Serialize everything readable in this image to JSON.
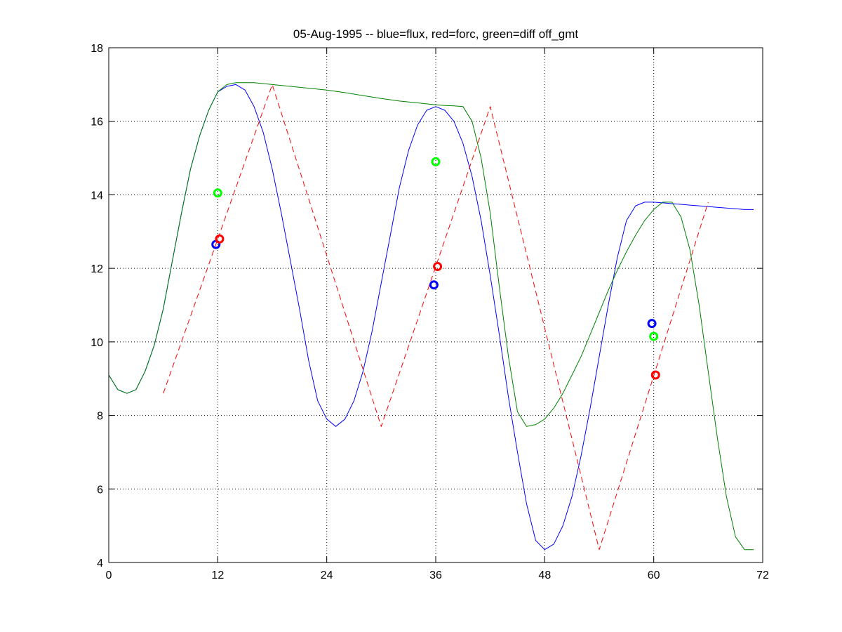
{
  "chart_data": {
    "type": "line",
    "title": "05-Aug-1995 -- blue=flux, red=forc, green=diff off_gmt",
    "xlabel": "",
    "ylabel": "",
    "xlim": [
      0,
      72
    ],
    "ylim": [
      4,
      18
    ],
    "xticks": [
      0,
      12,
      24,
      36,
      48,
      60,
      72
    ],
    "xtick_labels": [
      "0",
      "12",
      "24",
      "36",
      "48",
      "60",
      "72"
    ],
    "yticks": [
      4,
      6,
      8,
      10,
      12,
      14,
      16,
      18
    ],
    "ytick_labels": [
      "4",
      "6",
      "8",
      "10",
      "12",
      "14",
      "16",
      "18"
    ],
    "grid": true,
    "series": [
      {
        "color": "#0000ff",
        "style": "solid",
        "x": [
          0,
          1,
          2,
          3,
          4,
          5,
          6,
          7,
          8,
          9,
          10,
          11,
          12,
          13,
          14,
          15,
          16,
          17,
          18,
          19,
          20,
          21,
          22,
          23,
          24,
          25,
          26,
          27,
          28,
          29,
          30,
          31,
          32,
          33,
          34,
          35,
          36,
          37,
          38,
          39,
          40,
          41,
          42,
          43,
          44,
          45,
          46,
          47,
          48,
          49,
          50,
          51,
          52,
          53,
          54,
          55,
          56,
          57,
          58,
          59,
          60,
          61,
          62,
          63,
          64,
          65,
          66,
          67,
          68,
          69,
          70,
          71
        ],
        "y": [
          9.1,
          8.7,
          8.6,
          8.7,
          9.2,
          9.9,
          10.9,
          12.2,
          13.5,
          14.7,
          15.6,
          16.3,
          16.8,
          16.95,
          17.0,
          16.85,
          16.4,
          15.7,
          14.7,
          13.5,
          12.2,
          10.9,
          9.5,
          8.4,
          7.9,
          7.7,
          7.9,
          8.4,
          9.2,
          10.3,
          11.6,
          12.9,
          14.2,
          15.2,
          15.9,
          16.3,
          16.4,
          16.3,
          16.0,
          15.4,
          14.5,
          13.3,
          11.8,
          10.2,
          8.5,
          7.0,
          5.6,
          4.6,
          4.35,
          4.5,
          5.0,
          5.8,
          6.9,
          8.2,
          9.6,
          11.0,
          12.3,
          13.3,
          13.7,
          13.8,
          13.8,
          13.78,
          13.76,
          13.74,
          13.72,
          13.7,
          13.68,
          13.66,
          13.64,
          13.62,
          13.6,
          13.6
        ]
      },
      {
        "color": "#008000",
        "style": "solid",
        "x": [
          0,
          1,
          2,
          3,
          4,
          5,
          6,
          7,
          8,
          9,
          10,
          11,
          12,
          13,
          14,
          16,
          18,
          20,
          22,
          24,
          26,
          28,
          30,
          32,
          34,
          36,
          37,
          38,
          39,
          40,
          41,
          42,
          43,
          44,
          45,
          46,
          47,
          48,
          49,
          50,
          51,
          52,
          53,
          54,
          55,
          56,
          57,
          58,
          59,
          60,
          61,
          62,
          63,
          64,
          65,
          66,
          67,
          68,
          69,
          70,
          71
        ],
        "y": [
          9.1,
          8.7,
          8.6,
          8.7,
          9.2,
          9.9,
          10.9,
          12.2,
          13.5,
          14.7,
          15.6,
          16.3,
          16.8,
          17.0,
          17.05,
          17.05,
          17.0,
          16.95,
          16.9,
          16.85,
          16.78,
          16.7,
          16.62,
          16.55,
          16.5,
          16.45,
          16.43,
          16.42,
          16.4,
          16.0,
          15.0,
          13.5,
          11.5,
          9.6,
          8.1,
          7.7,
          7.75,
          7.9,
          8.2,
          8.6,
          9.1,
          9.6,
          10.2,
          10.8,
          11.4,
          11.95,
          12.45,
          12.9,
          13.3,
          13.6,
          13.8,
          13.8,
          13.4,
          12.5,
          11.0,
          9.2,
          7.4,
          5.8,
          4.7,
          4.35,
          4.35
        ]
      },
      {
        "color": "#ff0000",
        "style": "dashed",
        "x": [
          6,
          18,
          30,
          42,
          54,
          66
        ],
        "y": [
          8.6,
          17.0,
          7.7,
          16.4,
          4.35,
          13.8
        ]
      }
    ],
    "markers": [
      {
        "color": "#0000ff",
        "x": 11.8,
        "y": 12.65
      },
      {
        "color": "#ff0000",
        "x": 12.2,
        "y": 12.8
      },
      {
        "color": "#00ff00",
        "x": 12.0,
        "y": 14.05
      },
      {
        "color": "#0000ff",
        "x": 35.8,
        "y": 11.55
      },
      {
        "color": "#ff0000",
        "x": 36.2,
        "y": 12.05
      },
      {
        "color": "#00ff00",
        "x": 36.0,
        "y": 14.9
      },
      {
        "color": "#0000ff",
        "x": 59.8,
        "y": 10.5
      },
      {
        "color": "#ff0000",
        "x": 60.2,
        "y": 9.1
      },
      {
        "color": "#00ff00",
        "x": 60.0,
        "y": 10.15
      }
    ]
  }
}
